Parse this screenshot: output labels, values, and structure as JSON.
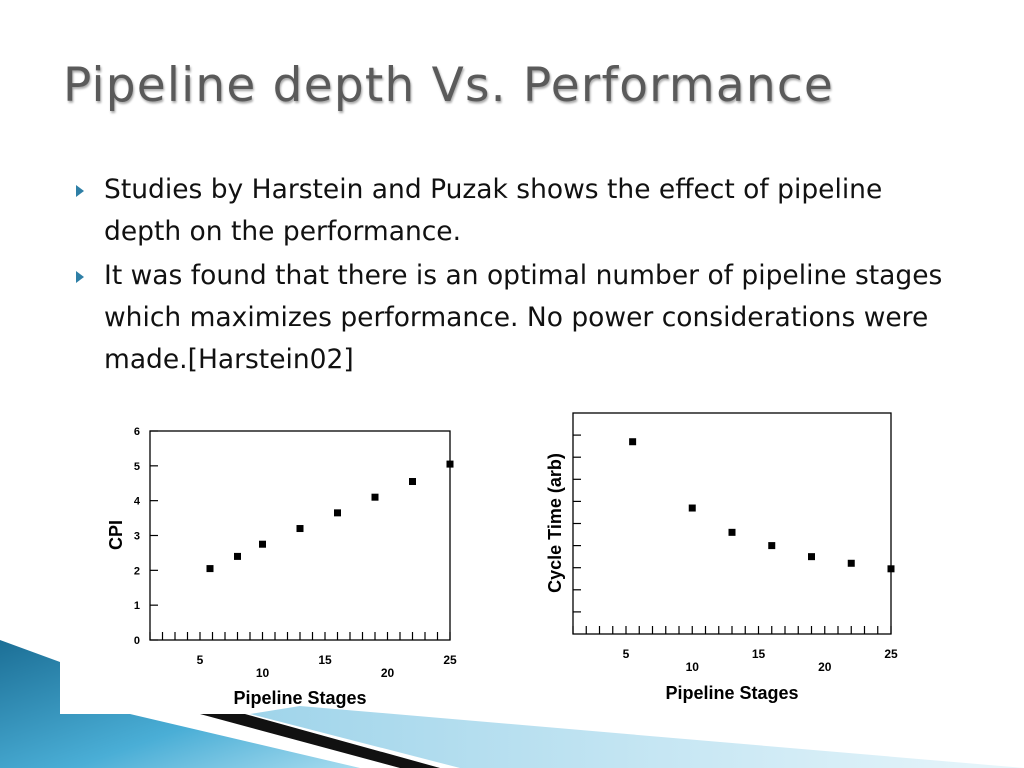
{
  "slide": {
    "title": "Pipeline depth Vs. Performance",
    "bullets": [
      "Studies by Harstein and Puzak shows the effect of pipeline depth on the performance.",
      "It was found that there is an optimal number of pipeline stages which maximizes performance. No power considerations were made.[Harstein02]"
    ],
    "bullet_color": "#2e7fa6"
  },
  "chart_data": [
    {
      "type": "scatter",
      "xlabel": "Pipeline Stages",
      "ylabel": "CPI",
      "x_ticks": [
        "5",
        "10",
        "15",
        "20",
        "25"
      ],
      "y_ticks": [
        "0",
        "1",
        "2",
        "3",
        "4",
        "5",
        "6"
      ],
      "xlim": [
        1,
        25
      ],
      "ylim": [
        0,
        6
      ],
      "points": [
        {
          "x": 5.8,
          "y": 2.05
        },
        {
          "x": 8,
          "y": 2.4
        },
        {
          "x": 10,
          "y": 2.75
        },
        {
          "x": 13,
          "y": 3.2
        },
        {
          "x": 16,
          "y": 3.65
        },
        {
          "x": 19,
          "y": 4.1
        },
        {
          "x": 22,
          "y": 4.55
        },
        {
          "x": 25,
          "y": 5.05
        }
      ]
    },
    {
      "type": "scatter",
      "xlabel": "Pipeline Stages",
      "ylabel": "Cycle Time (arb)",
      "x_ticks": [
        "5",
        "10",
        "15",
        "20",
        "25"
      ],
      "y_ticks": [],
      "xlim": [
        1,
        25
      ],
      "ylim": [
        0,
        10
      ],
      "points": [
        {
          "x": 5.5,
          "y": 8.7
        },
        {
          "x": 10,
          "y": 5.7
        },
        {
          "x": 13,
          "y": 4.6
        },
        {
          "x": 16,
          "y": 4.0
        },
        {
          "x": 19,
          "y": 3.5
        },
        {
          "x": 22,
          "y": 3.2
        },
        {
          "x": 25,
          "y": 2.95
        }
      ]
    }
  ]
}
